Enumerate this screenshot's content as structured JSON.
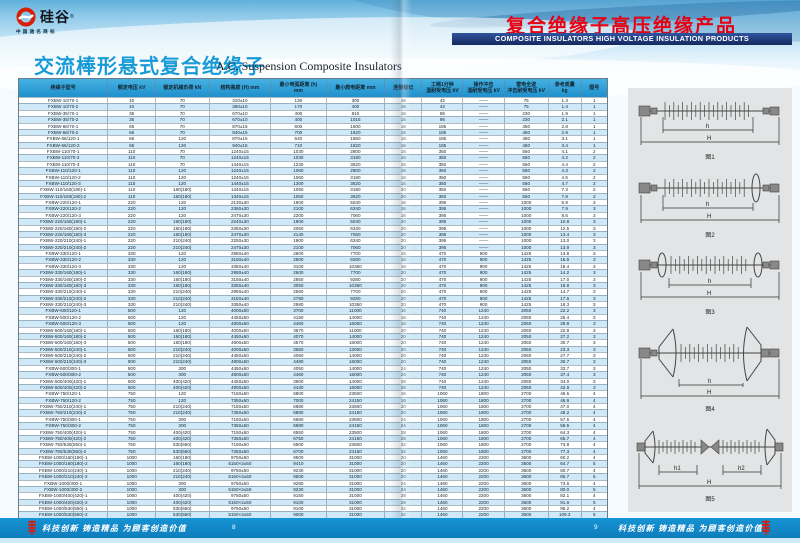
{
  "brand": {
    "logo_text": "硅谷",
    "logo_reg": "®",
    "logo_sub": "中国驰名商标"
  },
  "left_page": {
    "title_zh": "交流棒形悬式复合绝缘子",
    "title_en": "A.C. Suspension Composite Insulators",
    "page_number": "8"
  },
  "right_page": {
    "title_zh": "复合绝缘子高压绝缘产品",
    "title_en": "COMPOSITE INSULATORS HIGH VOLTAGE INSULATION PRODUCTS",
    "page_number": "9"
  },
  "footer": {
    "slogan": "科技创新 铸造精品 为顾客创造价值"
  },
  "figures": [
    {
      "caption": "图1",
      "d1": "h",
      "d2": "H"
    },
    {
      "caption": "图2",
      "d1": "h",
      "d2": "H"
    },
    {
      "caption": "图3",
      "d1": "h",
      "d2": "H"
    },
    {
      "caption": "图4",
      "d1": "h",
      "d2": "H"
    },
    {
      "caption": "图5",
      "d1": "h1",
      "d2": "h2",
      "d3": "H"
    }
  ],
  "colors": {
    "accent_blue": "#189bd7",
    "title_red": "#e60012",
    "header_blue": "#1f90cd",
    "row_alt": "#cfe9f8",
    "footer_blue": "#1090cd"
  },
  "table": {
    "headers": [
      "绝缘子型号",
      "额定电压 kV",
      "额定机械负荷 kN",
      "结构高度 (H) mm",
      "最小电弧距离 (h)\nmm",
      "最小爬电距离 mm",
      "连接标记",
      "工频1分钟\n湿耐受电压 kV",
      "操作冲击\n湿耐受电压 kV",
      "雷电全波\n冲击耐受电压 kV",
      "参考质量\nkg",
      "图号"
    ],
    "rows": [
      [
        "FXBW-10/70-1",
        "10",
        "70",
        "310±10",
        "130",
        "300",
        "16",
        "42",
        "——",
        "75",
        "1.3",
        "1"
      ],
      [
        "FXBW-10/70-2",
        "10",
        "70",
        "360±10",
        "170",
        "400",
        "16",
        "42",
        "——",
        "75",
        "1.4",
        "1"
      ],
      [
        "FXBW-35/70-1",
        "35",
        "70",
        "670±10",
        "400",
        "810",
        "16",
        "95",
        "——",
        "230",
        "1.9",
        "1"
      ],
      [
        "FXBW-35/70-2",
        "35",
        "70",
        "670±10",
        "400",
        "1015",
        "16",
        "95",
        "——",
        "230",
        "2.1",
        "1"
      ],
      [
        "FXBW-66/70-1",
        "66",
        "70",
        "870±15",
        "600",
        "1600",
        "16",
        "185",
        "——",
        "450",
        "2.8",
        "1"
      ],
      [
        "FXBW-66/70-2",
        "66",
        "70",
        "940±15",
        "700",
        "1820",
        "16",
        "185",
        "——",
        "450",
        "2.9",
        "1"
      ],
      [
        "FXBW-66/120-1",
        "66",
        "120",
        "870±15",
        "640",
        "1650",
        "16",
        "185",
        "——",
        "450",
        "3.1",
        "1"
      ],
      [
        "FXBW-66/120-2",
        "66",
        "120",
        "940±15",
        "710",
        "1820",
        "16",
        "185",
        "——",
        "450",
        "3.4",
        "1"
      ],
      [
        "FXBW-110/70-1",
        "110",
        "70",
        "1240±15",
        "1030",
        "2800",
        "16",
        "350",
        "——",
        "550",
        "4.1",
        "2"
      ],
      [
        "FXBW-110/70-2",
        "110",
        "70",
        "1240±15",
        "1030",
        "3190",
        "16",
        "350",
        "——",
        "550",
        "4.2",
        "2"
      ],
      [
        "FXBW-110/70-3",
        "110",
        "70",
        "1440±15",
        "1230",
        "3620",
        "16",
        "350",
        "——",
        "550",
        "4.4",
        "2"
      ],
      [
        "FXBW-110/120-1",
        "110",
        "120",
        "1240±15",
        "1060",
        "2800",
        "16",
        "350",
        "——",
        "550",
        "4.3",
        "2"
      ],
      [
        "FXBW-110/120-2",
        "110",
        "120",
        "1240±15",
        "1060",
        "3190",
        "16",
        "350",
        "——",
        "550",
        "4.5",
        "2"
      ],
      [
        "FXBW-110/120-3",
        "110",
        "120",
        "1440±15",
        "1300",
        "3620",
        "16",
        "350",
        "——",
        "550",
        "4.7",
        "2"
      ],
      [
        "FXBW-110/160(180)-1",
        "110",
        "160(180)",
        "1340±15",
        "1050",
        "3190",
        "20",
        "350",
        "——",
        "550",
        "7.3",
        "2"
      ],
      [
        "FXBW-110/160(180)-2",
        "110",
        "160(180)",
        "1340±15",
        "1050",
        "3620",
        "20",
        "350",
        "——",
        "550",
        "7.8",
        "2"
      ],
      [
        "FXBW-220/120-1",
        "220",
        "120",
        "2130±30",
        "1900",
        "5040",
        "16",
        "395",
        "——",
        "1000",
        "6.9",
        "3"
      ],
      [
        "FXBW-220/120-2",
        "220",
        "120",
        "2360±30",
        "2100",
        "6340",
        "16",
        "395",
        "——",
        "1000",
        "7.9",
        "3"
      ],
      [
        "FXBW-220/120-3",
        "220",
        "120",
        "2470±30",
        "2200",
        "7060",
        "16",
        "395",
        "——",
        "1000",
        "8.6",
        "3"
      ],
      [
        "FXBW-220/160(180)-1",
        "220",
        "160(180)",
        "2240±30",
        "1900",
        "5040",
        "20",
        "395",
        "——",
        "1000",
        "10.8",
        "3"
      ],
      [
        "FXBW-220/160(180)-2",
        "220",
        "160(180)",
        "2350±30",
        "2050",
        "6340",
        "20",
        "395",
        "——",
        "1000",
        "12.5",
        "3"
      ],
      [
        "FXBW-220/160(180)-3",
        "220",
        "160(180)",
        "2470±30",
        "2140",
        "7060",
        "20",
        "395",
        "——",
        "1000",
        "13.4",
        "3"
      ],
      [
        "FXBW-220/210(240)-1",
        "220",
        "210(240)",
        "2250±30",
        "1900",
        "6340",
        "20",
        "395",
        "——",
        "1000",
        "13.0",
        "3"
      ],
      [
        "FXBW-220/210(240)-2",
        "220",
        "210(240)",
        "2470±30",
        "2100",
        "7060",
        "20",
        "395",
        "——",
        "1000",
        "13.9",
        "3"
      ],
      [
        "FXBW-330/120-1",
        "330",
        "120",
        "2950±40",
        "2600",
        "7700",
        "16",
        "470",
        "900",
        "1425",
        "13.8",
        "3"
      ],
      [
        "FXBW-330/120-2",
        "330",
        "120",
        "3150±40",
        "2900",
        "9280",
        "16",
        "470",
        "900",
        "1425",
        "16.6",
        "3"
      ],
      [
        "FXBW-330/120-3",
        "330",
        "120",
        "3350±40",
        "3100",
        "10360",
        "16",
        "470",
        "900",
        "1425",
        "18.4",
        "3"
      ],
      [
        "FXBW-330/160(180)-1",
        "330",
        "160(180)",
        "2950±40",
        "2600",
        "7700",
        "20",
        "470",
        "900",
        "1425",
        "14.2",
        "3"
      ],
      [
        "FXBW-330/160(180)-2",
        "330",
        "160(180)",
        "3150±40",
        "2850",
        "9280",
        "20",
        "470",
        "900",
        "1425",
        "17.0",
        "3"
      ],
      [
        "FXBW-330/160(180)-3",
        "330",
        "160(180)",
        "3350±40",
        "3050",
        "10360",
        "20",
        "470",
        "900",
        "1425",
        "18.8",
        "3"
      ],
      [
        "FXBW-330/210(240)-1",
        "330",
        "210(240)",
        "2950±40",
        "2560",
        "7700",
        "20",
        "470",
        "900",
        "1425",
        "14.7",
        "3"
      ],
      [
        "FXBW-330/210(240)-2",
        "330",
        "210(240)",
        "3150±40",
        "2780",
        "9280",
        "20",
        "470",
        "900",
        "1425",
        "17.6",
        "3"
      ],
      [
        "FXBW-330/210(240)-3",
        "330",
        "210(240)",
        "3350±40",
        "2980",
        "10360",
        "20",
        "470",
        "900",
        "1425",
        "18.3",
        "3"
      ],
      [
        "FXBW-500/120-1",
        "500",
        "120",
        "4000±50",
        "3700",
        "11000",
        "16",
        "740",
        "1240",
        "2050",
        "22.2",
        "3"
      ],
      [
        "FXBW-500/120-2",
        "500",
        "120",
        "4450±50",
        "4150",
        "14000",
        "16",
        "740",
        "1240",
        "2050",
        "26.4",
        "3"
      ],
      [
        "FXBW-500/120-3",
        "500",
        "120",
        "4800±50",
        "4460",
        "16000",
        "16",
        "740",
        "1240",
        "2050",
        "29.8",
        "3"
      ],
      [
        "FXBW-500/160(180)-1",
        "500",
        "160(180)",
        "4000±50",
        "3670",
        "11000",
        "20",
        "740",
        "1240",
        "2050",
        "22.8",
        "3"
      ],
      [
        "FXBW-500/160(180)-2",
        "500",
        "160(180)",
        "4450±50",
        "4070",
        "14000",
        "20",
        "740",
        "1240",
        "2050",
        "27.2",
        "3"
      ],
      [
        "FXBW-500/160(180)-3",
        "500",
        "160(180)",
        "4900±50",
        "4570",
        "16000",
        "20",
        "740",
        "1240",
        "2050",
        "30.7",
        "3"
      ],
      [
        "FXBW-500/210(240)-1",
        "500",
        "210(240)",
        "4000±50",
        "3650",
        "13000",
        "20",
        "740",
        "1240",
        "2050",
        "23.3",
        "3"
      ],
      [
        "FXBW-500/210(240)-2",
        "500",
        "210(240)",
        "4450±50",
        "4050",
        "14000",
        "20",
        "740",
        "1240",
        "2050",
        "27.7",
        "3"
      ],
      [
        "FXBW-500/210(240)-3",
        "500",
        "210(240)",
        "4900±50",
        "4480",
        "16000",
        "20",
        "740",
        "1240",
        "2050",
        "30.7",
        "3"
      ],
      [
        "FXBW-500/300-1",
        "500",
        "300",
        "4450±50",
        "4050",
        "14000",
        "24",
        "740",
        "1240",
        "2050",
        "33.7",
        "3"
      ],
      [
        "FXBW-500/300-2",
        "500",
        "300",
        "4900±50",
        "4460",
        "16000",
        "24",
        "740",
        "1240",
        "2050",
        "37.4",
        "3"
      ],
      [
        "FXBW-500/400(420)-1",
        "500",
        "400(420)",
        "4450±50",
        "3900",
        "14000",
        "28",
        "740",
        "1240",
        "2050",
        "34.0",
        "3"
      ],
      [
        "FXBW-500/400(420)-2",
        "500",
        "400(420)",
        "4900±50",
        "4430",
        "16000",
        "28",
        "740",
        "1240",
        "2050",
        "42.9",
        "3"
      ],
      [
        "FXBW-750/120-1",
        "750",
        "120",
        "7150±50",
        "6800",
        "23500",
        "16",
        "1060",
        "1800",
        "2700",
        "46.5",
        "4"
      ],
      [
        "FXBW-750/120-2",
        "750",
        "120",
        "7350±50",
        "7000",
        "24150",
        "16",
        "1060",
        "1800",
        "2700",
        "46.9",
        "4"
      ],
      [
        "FXBW-750/210(240)-1",
        "750",
        "210(240)",
        "7150±50",
        "6680",
        "23500",
        "20",
        "1060",
        "1800",
        "2700",
        "47.0",
        "4"
      ],
      [
        "FXBW-750/210(240)-2",
        "750",
        "210(240)",
        "7350±50",
        "6880",
        "24150",
        "20",
        "1060",
        "1800",
        "2700",
        "48.2",
        "4"
      ],
      [
        "FXBW-750/300-1",
        "750",
        "300",
        "7150±50",
        "6680",
        "23500",
        "24",
        "1060",
        "1800",
        "2700",
        "57.5",
        "4"
      ],
      [
        "FXBW-750/300-2",
        "750",
        "300",
        "7350±50",
        "6880",
        "24150",
        "24",
        "1060",
        "1800",
        "2700",
        "58.5",
        "4"
      ],
      [
        "FXBW-750/400(420)-1",
        "750",
        "400(420)",
        "7150±50",
        "6550",
        "23500",
        "28",
        "1060",
        "1800",
        "2700",
        "64.3",
        "4"
      ],
      [
        "FXBW-750/400(420)-2",
        "750",
        "400(420)",
        "7350±50",
        "6750",
        "24150",
        "28",
        "1060",
        "1800",
        "2700",
        "65.7",
        "4"
      ],
      [
        "FXBW-750/530(550)-1",
        "750",
        "530(550)",
        "7150±50",
        "6500",
        "23500",
        "32",
        "1060",
        "1800",
        "2700",
        "73.8",
        "4"
      ],
      [
        "FXBW-750/530(550)-2",
        "750",
        "530(550)",
        "7350±50",
        "6700",
        "24150",
        "32",
        "1060",
        "1800",
        "2700",
        "77.3",
        "4"
      ],
      [
        "FXBW-1000/160(180)-1",
        "1000",
        "160(180)",
        "9750±50",
        "9500",
        "31000",
        "20",
        "1460",
        "2200",
        "3600",
        "60.2",
        "4"
      ],
      [
        "FXBW-1000/160(180)-2",
        "1000",
        "160(180)",
        "5150×2±50",
        "9410",
        "31000",
        "20",
        "1460",
        "2200",
        "3600",
        "64.7",
        "5"
      ],
      [
        "FXBW-1000/210(240)-1",
        "1000",
        "210(240)",
        "9750±50",
        "9230",
        "31000",
        "20",
        "1460",
        "2200",
        "3600",
        "60.7",
        "4"
      ],
      [
        "FXBW-1000/210(240)-2",
        "1000",
        "210(240)",
        "5150×2±50",
        "9500",
        "31000",
        "20",
        "1460",
        "2200",
        "3600",
        "65.7",
        "5"
      ],
      [
        "FXBW-1000/300-1",
        "1000",
        "300",
        "9750±50",
        "9280",
        "31000",
        "24",
        "1460",
        "2200",
        "3600",
        "73.6",
        "4"
      ],
      [
        "FXBW-1000/300-2",
        "1000",
        "300",
        "5150×2±50",
        "9230",
        "31000",
        "24",
        "1460",
        "2200",
        "3600",
        "80.0",
        "5"
      ],
      [
        "FXBW-1000/400(420)-1",
        "1000",
        "400(420)",
        "9750±50",
        "9150",
        "31000",
        "28",
        "1460",
        "2200",
        "3600",
        "82.1",
        "4"
      ],
      [
        "FXBW-1000/400(420)-2",
        "1000",
        "400(420)",
        "5150×2±50",
        "9100",
        "31000",
        "28",
        "1460",
        "2200",
        "3600",
        "91.6",
        "5"
      ],
      [
        "FXBW-1000/530(550)-1",
        "1000",
        "530(550)",
        "9750±50",
        "9100",
        "31000",
        "32",
        "1460",
        "2200",
        "3600",
        "95.2",
        "4"
      ],
      [
        "FXBW-1000/530(550)-2",
        "1000",
        "530(550)",
        "5150×2±50",
        "9000",
        "31000",
        "32",
        "1460",
        "2200",
        "3600",
        "109.3",
        "5"
      ]
    ]
  }
}
